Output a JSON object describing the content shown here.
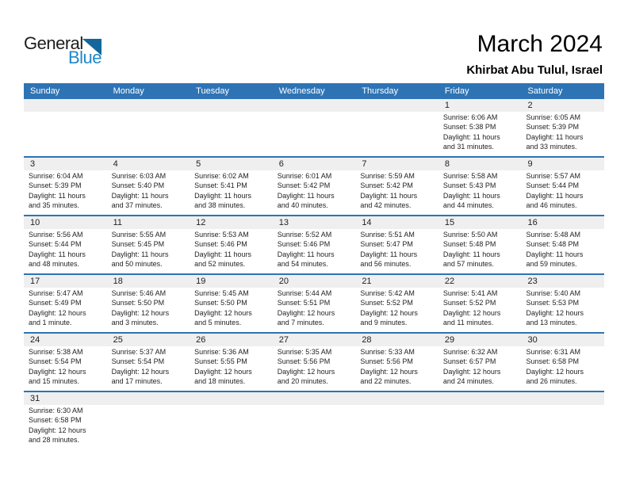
{
  "logo": {
    "part1": "General",
    "part2": "Blue"
  },
  "header": {
    "title": "March 2024",
    "subtitle": "Khirbat Abu Tulul, Israel"
  },
  "colors": {
    "header_blue": "#2e74b5",
    "line_blue": "#2e74b5",
    "band_gray": "#efefef",
    "logo_blue": "#2188c9",
    "logo_triangle": "#14679d"
  },
  "calendar": {
    "weekdays": [
      "Sunday",
      "Monday",
      "Tuesday",
      "Wednesday",
      "Thursday",
      "Friday",
      "Saturday"
    ],
    "weeks": [
      [
        null,
        null,
        null,
        null,
        null,
        {
          "day": "1",
          "lines": [
            "Sunrise: 6:06 AM",
            "Sunset: 5:38 PM",
            "Daylight: 11 hours",
            "and 31 minutes."
          ]
        },
        {
          "day": "2",
          "lines": [
            "Sunrise: 6:05 AM",
            "Sunset: 5:39 PM",
            "Daylight: 11 hours",
            "and 33 minutes."
          ]
        }
      ],
      [
        {
          "day": "3",
          "lines": [
            "Sunrise: 6:04 AM",
            "Sunset: 5:39 PM",
            "Daylight: 11 hours",
            "and 35 minutes."
          ]
        },
        {
          "day": "4",
          "lines": [
            "Sunrise: 6:03 AM",
            "Sunset: 5:40 PM",
            "Daylight: 11 hours",
            "and 37 minutes."
          ]
        },
        {
          "day": "5",
          "lines": [
            "Sunrise: 6:02 AM",
            "Sunset: 5:41 PM",
            "Daylight: 11 hours",
            "and 38 minutes."
          ]
        },
        {
          "day": "6",
          "lines": [
            "Sunrise: 6:01 AM",
            "Sunset: 5:42 PM",
            "Daylight: 11 hours",
            "and 40 minutes."
          ]
        },
        {
          "day": "7",
          "lines": [
            "Sunrise: 5:59 AM",
            "Sunset: 5:42 PM",
            "Daylight: 11 hours",
            "and 42 minutes."
          ]
        },
        {
          "day": "8",
          "lines": [
            "Sunrise: 5:58 AM",
            "Sunset: 5:43 PM",
            "Daylight: 11 hours",
            "and 44 minutes."
          ]
        },
        {
          "day": "9",
          "lines": [
            "Sunrise: 5:57 AM",
            "Sunset: 5:44 PM",
            "Daylight: 11 hours",
            "and 46 minutes."
          ]
        }
      ],
      [
        {
          "day": "10",
          "lines": [
            "Sunrise: 5:56 AM",
            "Sunset: 5:44 PM",
            "Daylight: 11 hours",
            "and 48 minutes."
          ]
        },
        {
          "day": "11",
          "lines": [
            "Sunrise: 5:55 AM",
            "Sunset: 5:45 PM",
            "Daylight: 11 hours",
            "and 50 minutes."
          ]
        },
        {
          "day": "12",
          "lines": [
            "Sunrise: 5:53 AM",
            "Sunset: 5:46 PM",
            "Daylight: 11 hours",
            "and 52 minutes."
          ]
        },
        {
          "day": "13",
          "lines": [
            "Sunrise: 5:52 AM",
            "Sunset: 5:46 PM",
            "Daylight: 11 hours",
            "and 54 minutes."
          ]
        },
        {
          "day": "14",
          "lines": [
            "Sunrise: 5:51 AM",
            "Sunset: 5:47 PM",
            "Daylight: 11 hours",
            "and 56 minutes."
          ]
        },
        {
          "day": "15",
          "lines": [
            "Sunrise: 5:50 AM",
            "Sunset: 5:48 PM",
            "Daylight: 11 hours",
            "and 57 minutes."
          ]
        },
        {
          "day": "16",
          "lines": [
            "Sunrise: 5:48 AM",
            "Sunset: 5:48 PM",
            "Daylight: 11 hours",
            "and 59 minutes."
          ]
        }
      ],
      [
        {
          "day": "17",
          "lines": [
            "Sunrise: 5:47 AM",
            "Sunset: 5:49 PM",
            "Daylight: 12 hours",
            "and 1 minute."
          ]
        },
        {
          "day": "18",
          "lines": [
            "Sunrise: 5:46 AM",
            "Sunset: 5:50 PM",
            "Daylight: 12 hours",
            "and 3 minutes."
          ]
        },
        {
          "day": "19",
          "lines": [
            "Sunrise: 5:45 AM",
            "Sunset: 5:50 PM",
            "Daylight: 12 hours",
            "and 5 minutes."
          ]
        },
        {
          "day": "20",
          "lines": [
            "Sunrise: 5:44 AM",
            "Sunset: 5:51 PM",
            "Daylight: 12 hours",
            "and 7 minutes."
          ]
        },
        {
          "day": "21",
          "lines": [
            "Sunrise: 5:42 AM",
            "Sunset: 5:52 PM",
            "Daylight: 12 hours",
            "and 9 minutes."
          ]
        },
        {
          "day": "22",
          "lines": [
            "Sunrise: 5:41 AM",
            "Sunset: 5:52 PM",
            "Daylight: 12 hours",
            "and 11 minutes."
          ]
        },
        {
          "day": "23",
          "lines": [
            "Sunrise: 5:40 AM",
            "Sunset: 5:53 PM",
            "Daylight: 12 hours",
            "and 13 minutes."
          ]
        }
      ],
      [
        {
          "day": "24",
          "lines": [
            "Sunrise: 5:38 AM",
            "Sunset: 5:54 PM",
            "Daylight: 12 hours",
            "and 15 minutes."
          ]
        },
        {
          "day": "25",
          "lines": [
            "Sunrise: 5:37 AM",
            "Sunset: 5:54 PM",
            "Daylight: 12 hours",
            "and 17 minutes."
          ]
        },
        {
          "day": "26",
          "lines": [
            "Sunrise: 5:36 AM",
            "Sunset: 5:55 PM",
            "Daylight: 12 hours",
            "and 18 minutes."
          ]
        },
        {
          "day": "27",
          "lines": [
            "Sunrise: 5:35 AM",
            "Sunset: 5:56 PM",
            "Daylight: 12 hours",
            "and 20 minutes."
          ]
        },
        {
          "day": "28",
          "lines": [
            "Sunrise: 5:33 AM",
            "Sunset: 5:56 PM",
            "Daylight: 12 hours",
            "and 22 minutes."
          ]
        },
        {
          "day": "29",
          "lines": [
            "Sunrise: 6:32 AM",
            "Sunset: 6:57 PM",
            "Daylight: 12 hours",
            "and 24 minutes."
          ]
        },
        {
          "day": "30",
          "lines": [
            "Sunrise: 6:31 AM",
            "Sunset: 6:58 PM",
            "Daylight: 12 hours",
            "and 26 minutes."
          ]
        }
      ],
      [
        {
          "day": "31",
          "lines": [
            "Sunrise: 6:30 AM",
            "Sunset: 6:58 PM",
            "Daylight: 12 hours",
            "and 28 minutes."
          ]
        },
        null,
        null,
        null,
        null,
        null,
        null
      ]
    ]
  }
}
